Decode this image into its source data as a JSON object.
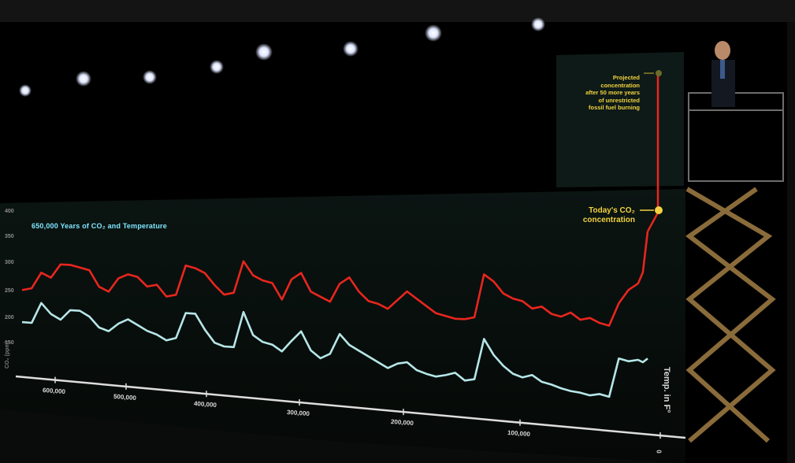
{
  "title_text": "650,000 Years of CO₂ and Temperature",
  "annotation_projected": [
    "Projected",
    "concentration",
    "after 50 more years",
    "of unrestricted",
    "fossil fuel burning"
  ],
  "annotation_today": [
    "Today's CO₂",
    "concentration"
  ],
  "temp_axis_label": "Temp. in F°",
  "co2_axis_label": "CO₂ (ppm)",
  "y_ticks": [
    "400",
    "350",
    "300",
    "250",
    "200",
    "150"
  ],
  "x_ticks": [
    "600,000",
    "500,000",
    "400,000",
    "300,000",
    "200,000",
    "100,000",
    "0"
  ],
  "colors": {
    "co2": "#e8261e",
    "temperature": "#b6e6e8",
    "accent": "#f2d23f",
    "title": "#7fe6ff"
  },
  "chart_data": {
    "type": "line",
    "title": "650,000 Years of CO₂ and Temperature",
    "xlabel": "",
    "x_reversed": true,
    "xlim": [
      650000,
      0
    ],
    "series": [
      {
        "name": "CO₂",
        "x": [
          650000,
          640000,
          630000,
          620000,
          610000,
          600000,
          590000,
          580000,
          570000,
          560000,
          550000,
          540000,
          530000,
          520000,
          510000,
          500000,
          490000,
          480000,
          470000,
          460000,
          450000,
          440000,
          430000,
          420000,
          410000,
          400000,
          390000,
          380000,
          370000,
          360000,
          350000,
          340000,
          330000,
          320000,
          310000,
          300000,
          290000,
          280000,
          270000,
          260000,
          250000,
          240000,
          230000,
          220000,
          210000,
          200000,
          190000,
          180000,
          170000,
          160000,
          150000,
          140000,
          130000,
          120000,
          110000,
          100000,
          90000,
          80000,
          70000,
          60000,
          50000,
          40000,
          30000,
          20000,
          10000,
          5000,
          0
        ],
        "y": [
          200,
          205,
          240,
          230,
          260,
          260,
          255,
          250,
          215,
          205,
          235,
          245,
          240,
          220,
          225,
          200,
          205,
          270,
          265,
          255,
          230,
          210,
          215,
          285,
          255,
          245,
          240,
          205,
          250,
          265,
          225,
          215,
          205,
          245,
          260,
          230,
          210,
          205,
          195,
          215,
          235,
          220,
          205,
          190,
          185,
          180,
          180,
          185,
          280,
          265,
          240,
          230,
          225,
          210,
          215,
          200,
          195,
          205,
          190,
          195,
          185,
          180,
          230,
          260,
          275,
          300,
          390
        ]
      },
      {
        "name": "Temperature",
        "x": [
          650000,
          640000,
          630000,
          620000,
          610000,
          600000,
          590000,
          580000,
          570000,
          560000,
          550000,
          540000,
          530000,
          520000,
          510000,
          500000,
          490000,
          480000,
          470000,
          460000,
          450000,
          440000,
          430000,
          420000,
          410000,
          400000,
          390000,
          380000,
          370000,
          360000,
          350000,
          340000,
          330000,
          320000,
          310000,
          300000,
          290000,
          280000,
          270000,
          260000,
          250000,
          240000,
          230000,
          220000,
          210000,
          200000,
          190000,
          180000,
          170000,
          160000,
          150000,
          140000,
          130000,
          120000,
          110000,
          100000,
          90000,
          80000,
          70000,
          60000,
          50000,
          40000,
          30000,
          20000,
          10000,
          5000,
          0
        ],
        "y": [
          0.5,
          0.5,
          2.5,
          1.5,
          1.0,
          2.0,
          2.0,
          1.5,
          0.5,
          0.2,
          1.0,
          1.5,
          1.0,
          0.5,
          0.2,
          -0.3,
          0.0,
          2.5,
          2.5,
          1.0,
          -0.2,
          -0.5,
          -0.5,
          3.0,
          0.8,
          0.2,
          0.0,
          -0.6,
          0.5,
          1.5,
          -0.3,
          -1.0,
          -0.5,
          1.5,
          0.5,
          0.0,
          -0.5,
          -1.0,
          -1.5,
          -1.0,
          -0.8,
          -1.5,
          -1.8,
          -2.0,
          -1.8,
          -1.5,
          -2.2,
          -2.0,
          2.0,
          0.5,
          -0.5,
          -1.2,
          -1.5,
          -1.2,
          -1.8,
          -2.0,
          -2.3,
          -2.5,
          -2.6,
          -2.8,
          -2.6,
          -2.8,
          1.0,
          0.8,
          1.0,
          0.8,
          1.2
        ]
      }
    ],
    "annotations": [
      "Today's CO₂ concentration",
      "Projected concentration after 50 more years of unrestricted fossil fuel burning"
    ]
  }
}
